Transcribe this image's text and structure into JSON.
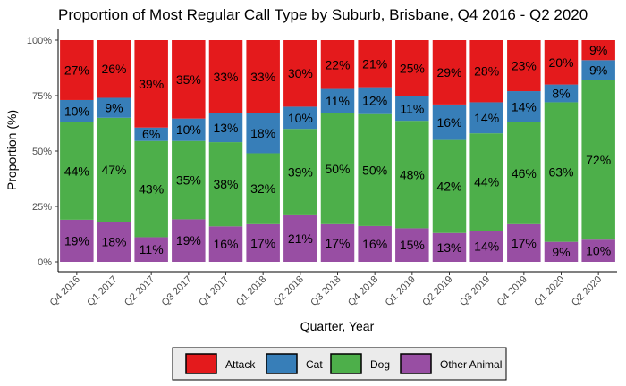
{
  "chart_data": {
    "type": "bar",
    "stacked": true,
    "title": "Proportion of Most Regular Call Type by Suburb, Brisbane, Q4 2016 - Q2 2020",
    "xlabel": "Quarter, Year",
    "ylabel": "Proportion (%)",
    "ylim": [
      0,
      100
    ],
    "yticks": [
      "0%",
      "25%",
      "50%",
      "75%",
      "100%"
    ],
    "grid": false,
    "legend_position": "bottom",
    "categories": [
      "Q4 2016",
      "Q1 2017",
      "Q2 2017",
      "Q3 2017",
      "Q4 2017",
      "Q1 2018",
      "Q2 2018",
      "Q3 2018",
      "Q4 2018",
      "Q1 2019",
      "Q2 2019",
      "Q3 2019",
      "Q4 2019",
      "Q1 2020",
      "Q2 2020"
    ],
    "series": [
      {
        "name": "Attack",
        "color": "#e41a1c",
        "values": [
          27,
          26,
          39,
          35,
          33,
          33,
          30,
          22,
          21,
          25,
          29,
          28,
          23,
          20,
          9
        ]
      },
      {
        "name": "Cat",
        "color": "#377eb8",
        "values": [
          10,
          9,
          6,
          10,
          13,
          18,
          10,
          11,
          12,
          11,
          16,
          14,
          14,
          8,
          9
        ]
      },
      {
        "name": "Dog",
        "color": "#4daf4a",
        "values": [
          44,
          47,
          43,
          35,
          38,
          32,
          39,
          50,
          50,
          48,
          42,
          44,
          46,
          63,
          72
        ]
      },
      {
        "name": "Other Animal",
        "color": "#984ea3",
        "values": [
          19,
          18,
          11,
          19,
          16,
          17,
          21,
          17,
          16,
          15,
          13,
          14,
          17,
          9,
          10
        ]
      }
    ],
    "stack_order_bottom_to_top": [
      "Other Animal",
      "Dog",
      "Cat",
      "Attack"
    ],
    "label_suffix": "%"
  }
}
